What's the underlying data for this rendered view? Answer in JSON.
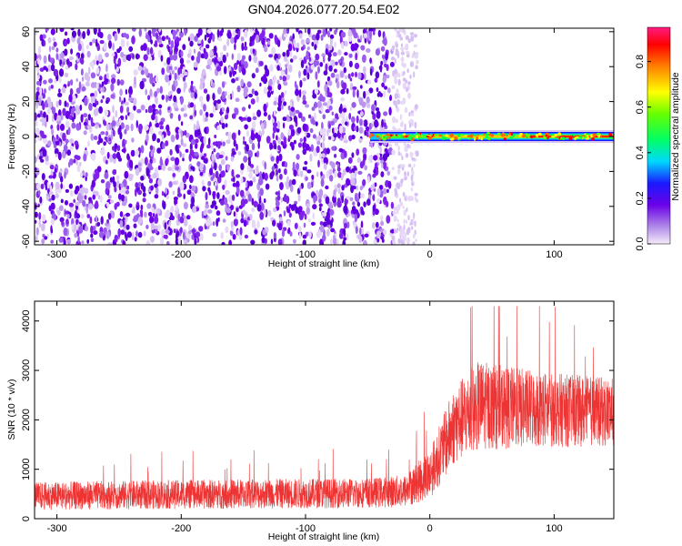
{
  "chart_data": [
    {
      "type": "heatmap",
      "title": "GN04.2026.077.20.54.E02",
      "xlabel": "Height of straight line (km)",
      "ylabel": "Frequency (Hz)",
      "xlim": [
        -318,
        148
      ],
      "ylim": [
        -62,
        62
      ],
      "xticks": [
        -300,
        -200,
        -100,
        0,
        100
      ],
      "yticks": [
        60,
        40,
        20,
        0,
        -20,
        -40,
        -60
      ],
      "noise_region_x": [
        -318,
        -30
      ],
      "noise_fade_x": [
        -30,
        -10
      ],
      "signal_band": {
        "x_start": -48,
        "x_end": 148,
        "freq_center": 0
      },
      "colorbar": {
        "label": "Normalized spectral amplitude",
        "range": [
          0.0,
          0.95
        ],
        "ticks": [
          0.0,
          0.2,
          0.4,
          0.6,
          0.8
        ],
        "tick_labels": [
          "0.0",
          "0.2",
          "0.4",
          "0.6",
          "0.8"
        ]
      }
    },
    {
      "type": "line",
      "xlabel": "Height of straight line (km)",
      "ylabel": "SNR (10 * v/v)",
      "xlim": [
        -318,
        148
      ],
      "ylim": [
        0,
        4400
      ],
      "xticks": [
        -300,
        -200,
        -100,
        0,
        100
      ],
      "yticks": [
        0,
        1000,
        2000,
        3000,
        4000
      ],
      "series": [
        {
          "name": "SNR",
          "color": "#ee3333",
          "envelope_x": [
            -318,
            -250,
            -150,
            -50,
            -20,
            0,
            20,
            40,
            60,
            100,
            148
          ],
          "envelope_mean": [
            460,
            480,
            500,
            520,
            560,
            900,
            1900,
            2300,
            2250,
            2200,
            2150
          ],
          "envelope_spread": [
            280,
            290,
            300,
            300,
            330,
            500,
            800,
            900,
            850,
            750,
            700
          ],
          "peak_max": 4300
        }
      ]
    }
  ]
}
